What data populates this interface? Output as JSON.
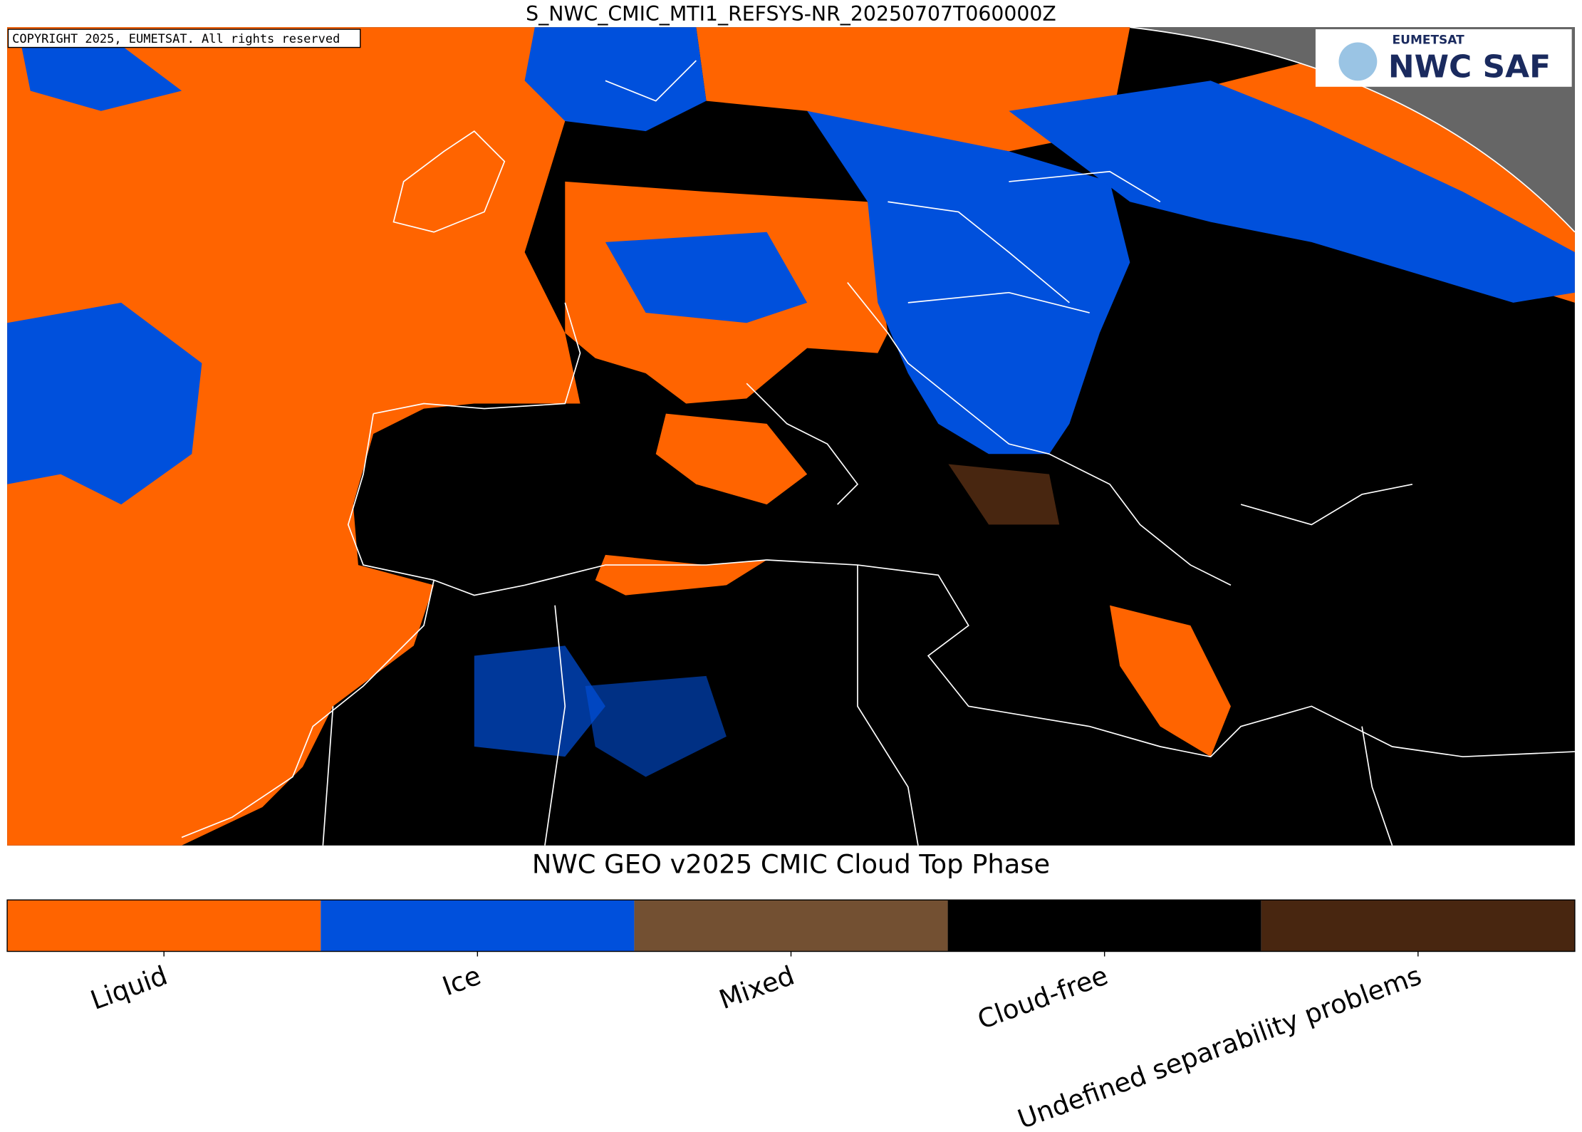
{
  "header": {
    "title": "S_NWC_CMIC_MTI1_REFSYS-NR_20250707T060000Z"
  },
  "map": {
    "copyright": "COPYRIGHT 2025, EUMETSAT. All rights reserved"
  },
  "logo": {
    "org": "EUMETSAT",
    "name": "NWC SAF"
  },
  "legend": {
    "title": "NWC GEO v2025 CMIC Cloud Top Phase",
    "items": [
      {
        "label": "Liquid",
        "color": "#ff6400"
      },
      {
        "label": "Ice",
        "color": "#0050dc"
      },
      {
        "label": "Mixed",
        "color": "#735032"
      },
      {
        "label": "Cloud-free",
        "color": "#000000"
      },
      {
        "label": "Undefined separability problems",
        "color": "#482610"
      }
    ]
  }
}
